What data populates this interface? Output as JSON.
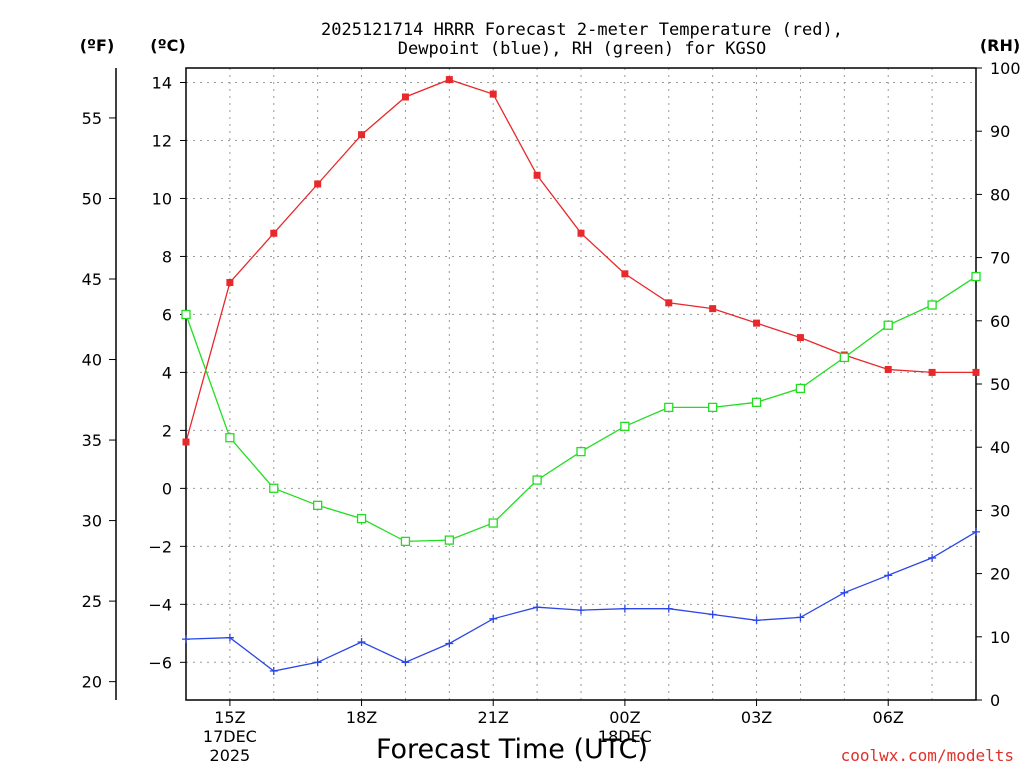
{
  "chart_data": {
    "type": "line",
    "title_line1": "2025121714 HRRR Forecast 2-meter Temperature (red),",
    "title_line2": "Dewpoint (blue), RH (green) for KGSO",
    "left_outer_unit": "(ºF)",
    "left_inner_unit": "(ºC)",
    "right_unit": "(RH)",
    "xlabel": "Forecast Time (UTC)",
    "credit": "coolwx.com/modelts",
    "x_hours": [
      14,
      15,
      16,
      17,
      18,
      19,
      20,
      21,
      22,
      23,
      24,
      25,
      26,
      27,
      28,
      29,
      30,
      31,
      32
    ],
    "x_range": [
      14,
      32
    ],
    "x_ticks": [
      {
        "hour": 15,
        "label": "15Z",
        "sub1": "17DEC",
        "sub2": "2025"
      },
      {
        "hour": 18,
        "label": "18Z",
        "sub1": "",
        "sub2": ""
      },
      {
        "hour": 21,
        "label": "21Z",
        "sub1": "",
        "sub2": ""
      },
      {
        "hour": 24,
        "label": "00Z",
        "sub1": "18DEC",
        "sub2": ""
      },
      {
        "hour": 27,
        "label": "03Z",
        "sub1": "",
        "sub2": ""
      },
      {
        "hour": 30,
        "label": "06Z",
        "sub1": "",
        "sub2": ""
      }
    ],
    "celsius_range": [
      -7.3,
      14.5
    ],
    "celsius_ticks": [
      "14",
      "12",
      "10",
      "8",
      "6",
      "4",
      "2",
      "0",
      "−2",
      "−4",
      "−6"
    ],
    "fahrenheit_ticks": [
      "55",
      "50",
      "45",
      "40",
      "35",
      "30",
      "25",
      "20"
    ],
    "rh_range": [
      0,
      100
    ],
    "rh_ticks": [
      "100",
      "90",
      "80",
      "70",
      "60",
      "50",
      "40",
      "30",
      "20",
      "10",
      "0"
    ],
    "series": [
      {
        "name": "Temperature",
        "unit": "C",
        "color": "#e8282b",
        "marker": "filled-square",
        "values": [
          1.6,
          7.1,
          8.8,
          10.5,
          12.2,
          13.5,
          14.1,
          13.6,
          10.8,
          8.8,
          7.4,
          6.4,
          6.2,
          5.7,
          5.2,
          4.6,
          4.1,
          4.0,
          4.0
        ]
      },
      {
        "name": "Dewpoint",
        "unit": "C",
        "color": "#2b46e6",
        "marker": "plus",
        "values": [
          -5.2,
          -5.15,
          -6.3,
          -6.0,
          -5.3,
          -6.0,
          -5.35,
          -4.5,
          -4.1,
          -4.2,
          -4.15,
          -4.15,
          -4.35,
          -4.55,
          -4.45,
          -3.6,
          -3.0,
          -2.4,
          -1.5
        ]
      },
      {
        "name": "RH",
        "unit": "%",
        "color": "#22dd22",
        "marker": "open-square",
        "values": [
          61,
          41.5,
          33.5,
          30.8,
          28.7,
          25.1,
          25.3,
          28,
          34.8,
          39.3,
          43.3,
          46.3,
          46.3,
          47.1,
          49.3,
          54.2,
          59.3,
          62.5,
          67
        ]
      }
    ]
  }
}
